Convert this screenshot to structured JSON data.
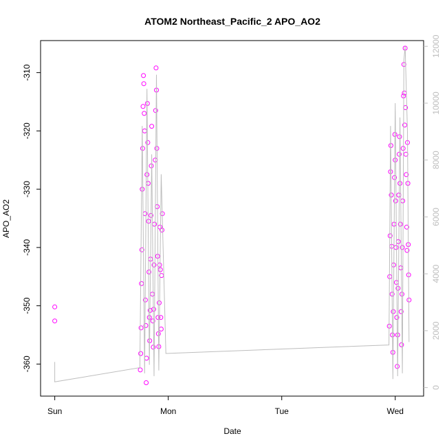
{
  "chart_data": {
    "type": "scatter",
    "title": "ATOM2 Northeast_Pacific_2 APO_AO2",
    "xlabel": "Date",
    "ylabel": "APO_AO2",
    "x_ticks": [
      "Sun",
      "Mon",
      "Tue",
      "Wed"
    ],
    "y_ticks": [
      "-310",
      "-320",
      "-330",
      "-340",
      "-350",
      "-360"
    ],
    "y_ticks_right": [
      "0",
      "2000",
      "4000",
      "6000",
      "8000",
      "10000",
      "12000"
    ],
    "xlim": [
      "Sun 00:00",
      "Wed 03:00"
    ],
    "ylim": [
      -365.5,
      -304.5
    ],
    "ylim_right": [
      -300,
      12200
    ],
    "grid": false,
    "series": [
      {
        "marker": "open-circle",
        "color": "#ff00ff",
        "points": [
          [
            "Sun 00:00",
            -350.2
          ],
          [
            "Sun 00:00",
            -352.6
          ],
          [
            "Sun 18:05",
            -361.0
          ],
          [
            "Sun 18:10",
            -358.2
          ],
          [
            "Sun 18:15",
            -353.8
          ],
          [
            "Sun 18:20",
            -346.2
          ],
          [
            "Sun 18:25",
            -340.4
          ],
          [
            "Sun 18:30",
            -330.0
          ],
          [
            "Sun 18:35",
            -323.0
          ],
          [
            "Sun 18:40",
            -315.8
          ],
          [
            "Sun 18:45",
            -310.5
          ],
          [
            "Sun 18:50",
            -311.9
          ],
          [
            "Sun 18:55",
            -317.0
          ],
          [
            "Sun 19:00",
            -320.0
          ],
          [
            "Sun 19:05",
            -334.2
          ],
          [
            "Sun 19:10",
            -349.0
          ],
          [
            "Sun 19:15",
            -353.4
          ],
          [
            "Sun 19:20",
            -363.2
          ],
          [
            "Sun 19:25",
            -359.0
          ],
          [
            "Sun 19:30",
            -327.5
          ],
          [
            "Sun 19:35",
            -315.3
          ],
          [
            "Sun 19:40",
            -322.0
          ],
          [
            "Sun 19:45",
            -329.0
          ],
          [
            "Sun 19:50",
            -335.5
          ],
          [
            "Sun 19:55",
            -344.2
          ],
          [
            "Sun 20:00",
            -352.0
          ],
          [
            "Sun 20:05",
            -356.0
          ],
          [
            "Sun 20:10",
            -350.8
          ],
          [
            "Sun 20:15",
            -342.0
          ],
          [
            "Sun 20:20",
            -334.5
          ],
          [
            "Sun 20:25",
            -326.0
          ],
          [
            "Sun 20:30",
            -319.2
          ],
          [
            "Sun 20:40",
            -348.0
          ],
          [
            "Sun 20:45",
            -352.6
          ],
          [
            "Sun 20:50",
            -357.1
          ],
          [
            "Sun 20:55",
            -350.6
          ],
          [
            "Sun 21:00",
            -343.0
          ],
          [
            "Sun 21:05",
            -336.0
          ],
          [
            "Sun 21:15",
            -325.0
          ],
          [
            "Sun 21:20",
            -316.5
          ],
          [
            "Sun 21:25",
            -309.2
          ],
          [
            "Sun 21:30",
            -313.0
          ],
          [
            "Sun 21:35",
            -323.0
          ],
          [
            "Sun 21:40",
            -333.0
          ],
          [
            "Sun 21:45",
            -341.5
          ],
          [
            "Sun 21:50",
            -352.0
          ],
          [
            "Sun 21:55",
            -354.8
          ],
          [
            "Sun 22:00",
            -357.0
          ],
          [
            "Sun 22:05",
            -349.5
          ],
          [
            "Sun 22:10",
            -343.0
          ],
          [
            "Sun 22:15",
            -336.5
          ],
          [
            "Sun 22:20",
            -343.8
          ],
          [
            "Sun 22:25",
            -352.0
          ],
          [
            "Sun 22:30",
            -354.0
          ],
          [
            "Sun 22:35",
            -344.8
          ],
          [
            "Sun 22:40",
            -337.0
          ],
          [
            "Sun 22:45",
            -334.2
          ],
          [
            "Tue 22:45",
            -353.5
          ],
          [
            "Tue 22:50",
            -345.0
          ],
          [
            "Tue 22:55",
            -338.0
          ],
          [
            "Tue 23:00",
            -327.0
          ],
          [
            "Tue 23:05",
            -322.5
          ],
          [
            "Tue 23:10",
            -331.0
          ],
          [
            "Tue 23:15",
            -339.8
          ],
          [
            "Tue 23:20",
            -348.0
          ],
          [
            "Tue 23:25",
            -355.0
          ],
          [
            "Tue 23:30",
            -358.0
          ],
          [
            "Tue 23:35",
            -351.0
          ],
          [
            "Tue 23:40",
            -343.0
          ],
          [
            "Tue 23:45",
            -336.0
          ],
          [
            "Tue 23:50",
            -328.0
          ],
          [
            "Tue 23:55",
            -320.6
          ],
          [
            "Wed 00:00",
            -325.0
          ],
          [
            "Wed 00:05",
            -332.0
          ],
          [
            "Wed 00:10",
            -340.0
          ],
          [
            "Wed 00:15",
            -346.0
          ],
          [
            "Wed 00:20",
            -352.0
          ],
          [
            "Wed 00:25",
            -360.4
          ],
          [
            "Wed 00:30",
            -355.0
          ],
          [
            "Wed 00:35",
            -347.0
          ],
          [
            "Wed 00:40",
            -339.0
          ],
          [
            "Wed 00:45",
            -331.0
          ],
          [
            "Wed 00:50",
            -324.0
          ],
          [
            "Wed 00:55",
            -321.0
          ],
          [
            "Wed 01:00",
            -329.0
          ],
          [
            "Wed 01:05",
            -336.0
          ],
          [
            "Wed 01:10",
            -343.5
          ],
          [
            "Wed 01:15",
            -351.0
          ],
          [
            "Wed 01:20",
            -356.7
          ],
          [
            "Wed 01:25",
            -348.0
          ],
          [
            "Wed 01:30",
            -340.0
          ],
          [
            "Wed 01:35",
            -332.0
          ],
          [
            "Wed 01:40",
            -323.0
          ],
          [
            "Wed 01:45",
            -314.0
          ],
          [
            "Wed 01:50",
            -308.6
          ],
          [
            "Wed 01:55",
            -313.5
          ],
          [
            "Wed 02:00",
            -319.0
          ],
          [
            "Wed 02:05",
            -305.8
          ],
          [
            "Wed 02:10",
            -316.0
          ],
          [
            "Wed 02:15",
            -324.0
          ],
          [
            "Wed 02:20",
            -327.5
          ],
          [
            "Wed 02:25",
            -336.5
          ],
          [
            "Wed 02:30",
            -340.5
          ],
          [
            "Wed 02:35",
            -322.0
          ],
          [
            "Wed 02:40",
            -329.0
          ],
          [
            "Wed 02:45",
            -339.5
          ],
          [
            "Wed 02:50",
            -344.7
          ],
          [
            "Wed 02:55",
            -349.0
          ]
        ]
      },
      {
        "line": true,
        "color": "#bdbdbd",
        "axis": "right",
        "points": [
          [
            "Sun 00:00",
            900
          ],
          [
            "Sun 00:00",
            200
          ],
          [
            "Sun 18:00",
            700
          ],
          [
            "Sun 18:30",
            9200
          ],
          [
            "Sun 19:00",
            500
          ],
          [
            "Sun 19:30",
            10500
          ],
          [
            "Sun 20:00",
            800
          ],
          [
            "Sun 20:30",
            8200
          ],
          [
            "Sun 21:00",
            400
          ],
          [
            "Sun 21:30",
            11000
          ],
          [
            "Sun 22:00",
            600
          ],
          [
            "Sun 22:30",
            7500
          ],
          [
            "Sun 23:30",
            1200
          ],
          [
            "Tue 22:40",
            1500
          ],
          [
            "Tue 23:00",
            9200
          ],
          [
            "Tue 23:30",
            300
          ],
          [
            "Wed 00:00",
            10000
          ],
          [
            "Wed 00:30",
            400
          ],
          [
            "Wed 01:00",
            9500
          ],
          [
            "Wed 01:30",
            500
          ],
          [
            "Wed 01:50",
            11500
          ],
          [
            "Wed 02:05",
            12000
          ],
          [
            "Wed 02:35",
            9000
          ],
          [
            "Wed 02:55",
            1600
          ]
        ]
      }
    ]
  }
}
